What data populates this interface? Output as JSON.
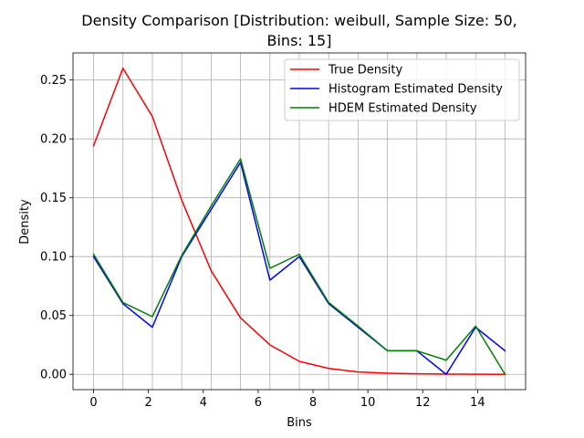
{
  "chart_data": {
    "type": "line",
    "title_line1": "Density Comparison [Distribution: weibull, Sample Size: 50,",
    "title_line2": "Bins: 15]",
    "xlabel": "Bins",
    "ylabel": "Density",
    "xlim": [
      -0.75,
      15.75
    ],
    "ylim": [
      -0.013,
      0.273
    ],
    "x_ticks": [
      0,
      2,
      4,
      6,
      8,
      10,
      12,
      14
    ],
    "y_ticks": [
      0.0,
      0.05,
      0.1,
      0.15,
      0.2,
      0.25
    ],
    "y_tick_labels": [
      "0.00",
      "0.05",
      "0.10",
      "0.15",
      "0.20",
      "0.25"
    ],
    "grid_x": [
      0,
      1.071,
      2.143,
      3.214,
      4.286,
      5.357,
      6.429,
      7.5,
      8.571,
      9.643,
      10.714,
      11.786,
      12.857,
      13.929,
      15
    ],
    "grid_y": [
      0.0,
      0.05,
      0.1,
      0.15,
      0.2,
      0.25
    ],
    "legend_position": "upper-right",
    "series": [
      {
        "name": "True Density",
        "color": "#ff0000",
        "x": [
          0,
          1.071,
          2.143,
          3.214,
          4.286,
          5.357,
          6.429,
          7.5,
          8.571,
          9.643,
          10.714,
          11.786,
          12.857,
          13.929,
          15
        ],
        "y": [
          0.194,
          0.26,
          0.219,
          0.148,
          0.088,
          0.048,
          0.025,
          0.011,
          0.005,
          0.002,
          0.001,
          0.0005,
          0.0002,
          0.0001,
          0.0
        ]
      },
      {
        "name": "Histogram Estimated Density",
        "color": "#0000ff",
        "x": [
          0,
          1.071,
          2.143,
          3.214,
          4.286,
          5.357,
          6.429,
          7.5,
          8.571,
          9.643,
          10.714,
          11.786,
          12.857,
          13.929,
          15
        ],
        "y": [
          0.1,
          0.06,
          0.04,
          0.1,
          0.14,
          0.18,
          0.08,
          0.1,
          0.06,
          0.04,
          0.02,
          0.02,
          0.0,
          0.04,
          0.02
        ]
      },
      {
        "name": "HDEM Estimated Density",
        "color": "#008000",
        "x": [
          0,
          1.071,
          2.143,
          3.214,
          4.286,
          5.357,
          6.429,
          7.5,
          8.571,
          9.643,
          10.714,
          11.786,
          12.857,
          13.929,
          15
        ],
        "y": [
          0.102,
          0.061,
          0.049,
          0.101,
          0.143,
          0.183,
          0.09,
          0.102,
          0.061,
          0.041,
          0.02,
          0.02,
          0.012,
          0.041,
          0.0
        ]
      }
    ]
  }
}
